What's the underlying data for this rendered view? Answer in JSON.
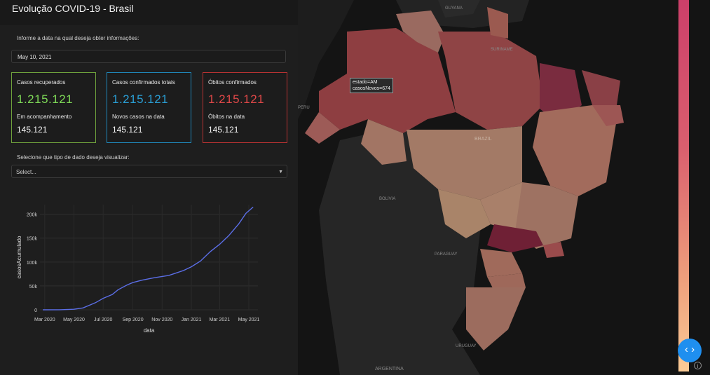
{
  "header": {
    "title": "Evolução COVID-19 - Brasil"
  },
  "date_section": {
    "prompt": "Informe a data na qual deseja obter informações:",
    "date_value": "May 10, 2021"
  },
  "cards": [
    {
      "label_top": "Casos recuperados",
      "value_top": "1.215.121",
      "label_bottom": "Em acompanhamento",
      "value_bottom": "145.121",
      "accent": "#7ed957",
      "border": "#6fa23c"
    },
    {
      "label_top": "Casos confirmados totais",
      "value_top": "1.215.121",
      "label_bottom": "Novos casos na data",
      "value_bottom": "145.121",
      "accent": "#2a9fd6",
      "border": "#1f86b8"
    },
    {
      "label_top": "Óbitos confirmados",
      "value_top": "1.215.121",
      "label_bottom": "Óbitos na data",
      "value_bottom": "145.121",
      "accent": "#e04848",
      "border": "#b83232"
    }
  ],
  "select_section": {
    "prompt": "Selecione que tipo de dado deseja visualizar:",
    "placeholder": "Select..."
  },
  "chart_data": {
    "type": "line",
    "xlabel": "data",
    "ylabel": "casosAcumulado",
    "x_ticks": [
      "Mar 2020",
      "May 2020",
      "Jul 2020",
      "Sep 2020",
      "Nov 2020",
      "Jan 2021",
      "Mar 2021",
      "May 2021"
    ],
    "y_ticks": [
      "0",
      "50k",
      "100k",
      "150k",
      "200k"
    ],
    "ylim": [
      0,
      220000
    ],
    "series": [
      {
        "x": [
          "2020-02-26",
          "2020-04-01",
          "2020-05-01",
          "2020-05-20",
          "2020-06-15",
          "2020-07-01",
          "2020-07-20",
          "2020-08-01",
          "2020-08-20",
          "2020-09-01",
          "2020-09-20",
          "2020-10-15",
          "2020-11-15",
          "2020-12-15",
          "2021-01-01",
          "2021-01-20",
          "2021-02-10",
          "2021-03-01",
          "2021-03-20",
          "2021-04-10",
          "2021-04-25",
          "2021-05-10"
        ],
        "y": [
          0,
          200,
          1200,
          4000,
          15000,
          24000,
          32000,
          42000,
          52000,
          57000,
          62000,
          67000,
          72000,
          82000,
          90000,
          102000,
          122000,
          137000,
          155000,
          180000,
          202000,
          215000
        ]
      }
    ],
    "line_color": "#5b6ee6",
    "grid": true
  },
  "map": {
    "tooltip_line1": "estado=AM",
    "tooltip_line2": "casosNovos=674",
    "country_labels": [
      "BRAZIL",
      "BOLIVIA",
      "PERU",
      "PARAGUAY",
      "URUGUAY",
      "ARGENTINA",
      "GUYANA",
      "SURINAME"
    ]
  },
  "colorbar": {
    "top_color": "#cc3f6a",
    "bottom_color": "#fbcb96"
  },
  "fab_icon": "code-toggle-icon",
  "info_icon": "info-icon",
  "info_glyph": "i"
}
